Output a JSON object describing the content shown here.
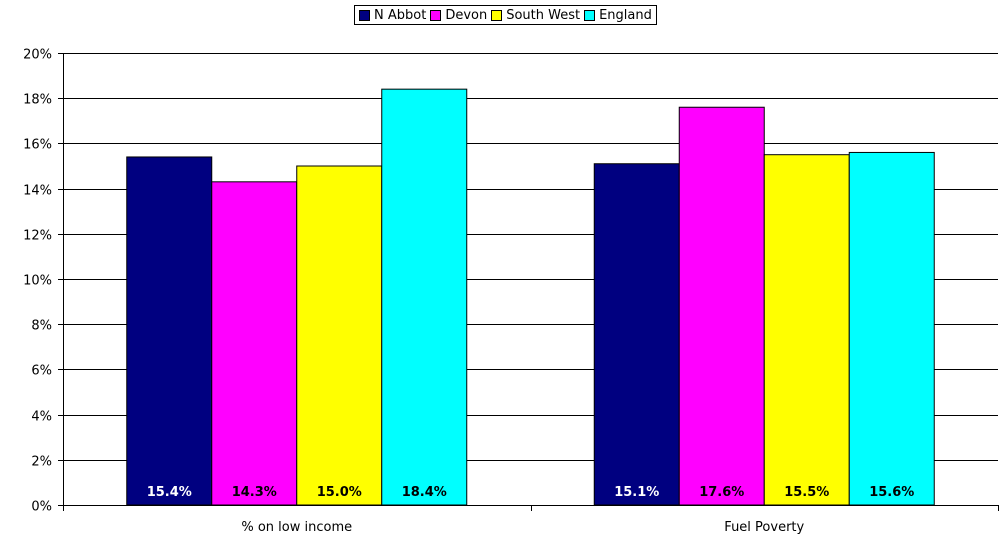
{
  "chart_data": {
    "type": "bar",
    "categories": [
      "% on low income",
      "Fuel Poverty"
    ],
    "series": [
      {
        "name": "N Abbot",
        "color": "#000080",
        "values": [
          15.4,
          15.1
        ],
        "labels": [
          "15.4%",
          "15.1%"
        ],
        "label_color": "#ffffff"
      },
      {
        "name": "Devon",
        "color": "#ff00ff",
        "values": [
          14.3,
          17.6
        ],
        "labels": [
          "14.3%",
          "17.6%"
        ],
        "label_color": "#000000"
      },
      {
        "name": "South West",
        "color": "#ffff00",
        "values": [
          15.0,
          15.5
        ],
        "labels": [
          "15.0%",
          "15.5%"
        ],
        "label_color": "#000000"
      },
      {
        "name": "England",
        "color": "#00ffff",
        "values": [
          18.4,
          15.6
        ],
        "labels": [
          "18.4%",
          "15.6%"
        ],
        "label_color": "#000000"
      }
    ],
    "ylim": [
      0,
      20
    ],
    "yticks": [
      0,
      2,
      4,
      6,
      8,
      10,
      12,
      14,
      16,
      18,
      20
    ],
    "ytick_labels": [
      "0%",
      "2%",
      "4%",
      "6%",
      "8%",
      "10%",
      "12%",
      "14%",
      "16%",
      "18%",
      "20%"
    ],
    "title": "",
    "xlabel": "",
    "ylabel": "",
    "grid": true,
    "legend_position": "top-center"
  }
}
